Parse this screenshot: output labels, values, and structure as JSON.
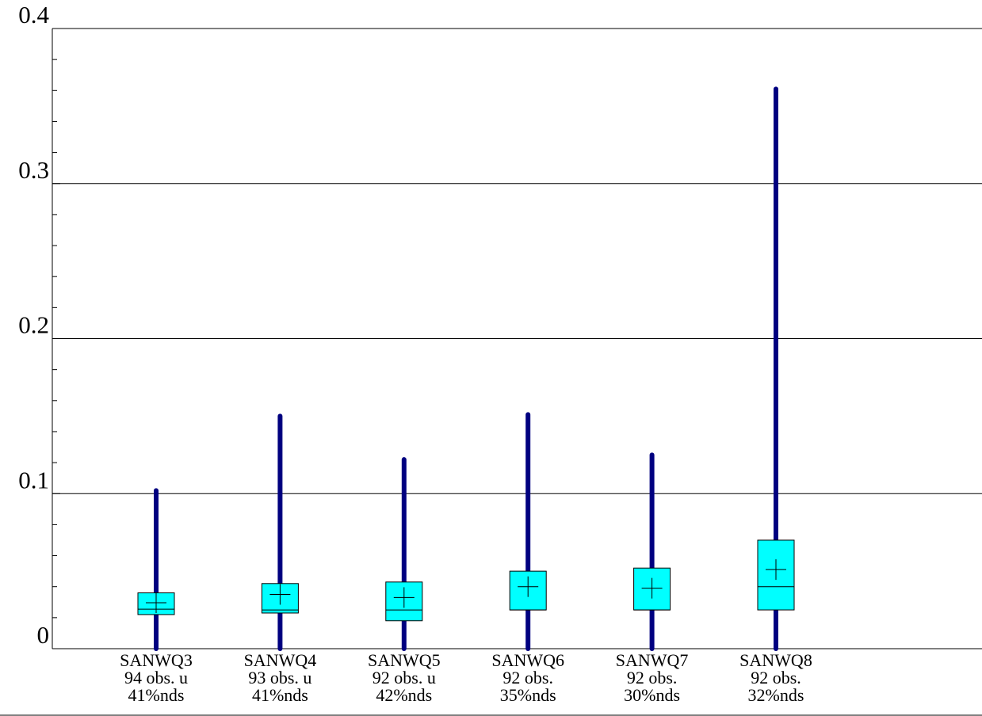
{
  "chart_data": {
    "type": "box",
    "categories": [
      "SANWQ3",
      "SANWQ4",
      "SANWQ5",
      "SANWQ6",
      "SANWQ7",
      "SANWQ8"
    ],
    "sublabels": [
      [
        "94 obs. u",
        "41%nds"
      ],
      [
        "93 obs. u",
        "41%nds"
      ],
      [
        "92 obs. u",
        "42%nds"
      ],
      [
        "92 obs.",
        "35%nds"
      ],
      [
        "92 obs.",
        "30%nds"
      ],
      [
        "92 obs.",
        "32%nds"
      ]
    ],
    "boxes": [
      {
        "min": 0,
        "q1": 0.022,
        "median": 0.0255,
        "q3": 0.036,
        "max": 0.102,
        "mean": 0.0296
      },
      {
        "min": 0,
        "q1": 0.023,
        "median": 0.025,
        "q3": 0.042,
        "max": 0.15,
        "mean": 0.035
      },
      {
        "min": 0,
        "q1": 0.018,
        "median": 0.025,
        "q3": 0.043,
        "max": 0.122,
        "mean": 0.033
      },
      {
        "min": 0,
        "q1": 0.025,
        "median": 0.025,
        "q3": 0.05,
        "max": 0.151,
        "mean": 0.04
      },
      {
        "min": 0,
        "q1": 0.025,
        "median": 0.025,
        "q3": 0.052,
        "max": 0.125,
        "mean": 0.039
      },
      {
        "min": 0,
        "q1": 0.025,
        "median": 0.04,
        "q3": 0.07,
        "max": 0.361,
        "mean": 0.051
      }
    ],
    "whisker_color": "#000080",
    "box_color": "#00ffff",
    "ylim": [
      0,
      0.4
    ],
    "yticks": [
      0,
      0.1,
      0.2,
      0.3,
      0.4
    ],
    "minor_yticks": [
      0.02,
      0.04,
      0.06,
      0.08,
      0.12,
      0.14,
      0.16,
      0.18,
      0.22,
      0.24,
      0.26,
      0.28,
      0.32,
      0.34,
      0.36,
      0.38
    ],
    "grid": true
  }
}
